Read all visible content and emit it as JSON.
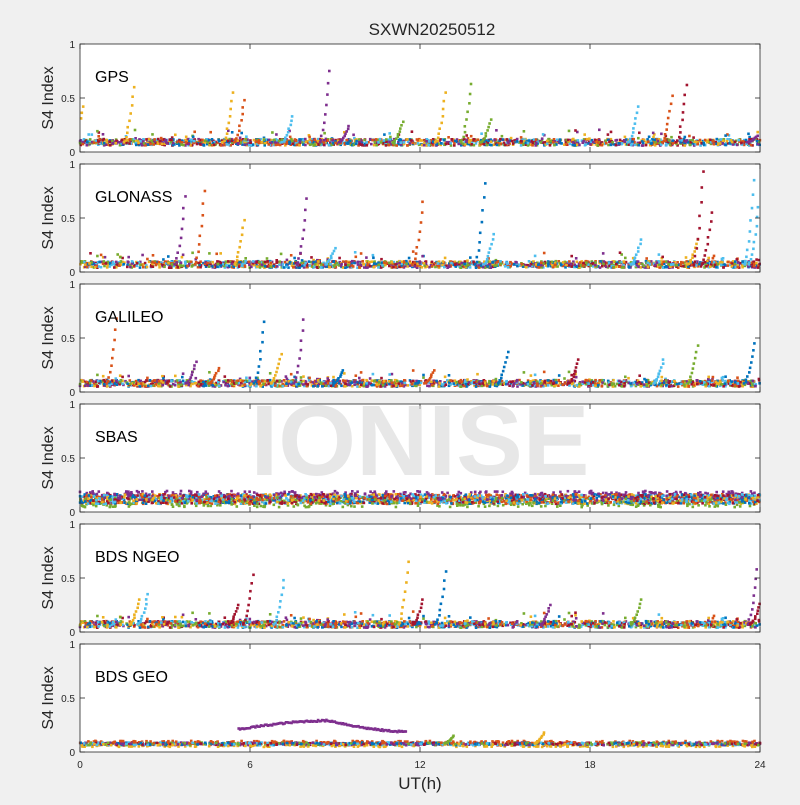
{
  "figure": {
    "title": "SXWN20250512",
    "xlabel": "UT(h)",
    "watermark": "IONISE",
    "xticks": [
      "0",
      "6",
      "12",
      "18",
      "24"
    ],
    "colors": [
      "#0072BD",
      "#D95319",
      "#EDB120",
      "#7E2F8E",
      "#77AC30",
      "#4DBEEE",
      "#A2142F"
    ]
  },
  "chart_data": [
    {
      "type": "scatter",
      "panel_label": "GPS",
      "ylabel": "S4 Index",
      "xlim": [
        0,
        24
      ],
      "ylim": [
        0,
        1
      ],
      "yticks": [
        "0",
        "0.5",
        "1"
      ],
      "baseline": 0.09,
      "spikes": [
        {
          "x": 0.1,
          "y": 0.42,
          "c": 2
        },
        {
          "x": 1.9,
          "y": 0.6,
          "c": 2
        },
        {
          "x": 5.4,
          "y": 0.55,
          "c": 2
        },
        {
          "x": 5.8,
          "y": 0.48,
          "c": 1
        },
        {
          "x": 7.5,
          "y": 0.33,
          "c": 5
        },
        {
          "x": 8.8,
          "y": 0.75,
          "c": 3
        },
        {
          "x": 9.5,
          "y": 0.24,
          "c": 3
        },
        {
          "x": 11.4,
          "y": 0.28,
          "c": 4
        },
        {
          "x": 12.9,
          "y": 0.55,
          "c": 2
        },
        {
          "x": 13.8,
          "y": 0.63,
          "c": 4
        },
        {
          "x": 14.5,
          "y": 0.3,
          "c": 4
        },
        {
          "x": 19.7,
          "y": 0.42,
          "c": 5
        },
        {
          "x": 20.9,
          "y": 0.52,
          "c": 1
        },
        {
          "x": 21.4,
          "y": 0.62,
          "c": 6
        },
        {
          "x": 23.9,
          "y": 0.15,
          "c": 3
        }
      ]
    },
    {
      "type": "scatter",
      "panel_label": "GLONASS",
      "ylabel": "S4 Index",
      "xlim": [
        0,
        24
      ],
      "ylim": [
        0,
        1
      ],
      "yticks": [
        "0",
        "0.5",
        "1"
      ],
      "baseline": 0.07,
      "spikes": [
        {
          "x": 3.7,
          "y": 0.7,
          "c": 3
        },
        {
          "x": 4.4,
          "y": 0.75,
          "c": 1
        },
        {
          "x": 5.8,
          "y": 0.48,
          "c": 2
        },
        {
          "x": 8.0,
          "y": 0.68,
          "c": 3
        },
        {
          "x": 9.0,
          "y": 0.22,
          "c": 5
        },
        {
          "x": 12.1,
          "y": 0.65,
          "c": 1
        },
        {
          "x": 14.3,
          "y": 0.82,
          "c": 0
        },
        {
          "x": 14.6,
          "y": 0.35,
          "c": 5
        },
        {
          "x": 19.8,
          "y": 0.3,
          "c": 5
        },
        {
          "x": 21.8,
          "y": 0.3,
          "c": 2
        },
        {
          "x": 22.0,
          "y": 0.93,
          "c": 6
        },
        {
          "x": 22.3,
          "y": 0.55,
          "c": 6
        },
        {
          "x": 23.8,
          "y": 0.85,
          "c": 5
        },
        {
          "x": 23.95,
          "y": 0.6,
          "c": 5
        }
      ]
    },
    {
      "type": "scatter",
      "panel_label": "GALILEO",
      "ylabel": "S4 Index",
      "xlim": [
        0,
        24
      ],
      "ylim": [
        0,
        1
      ],
      "yticks": [
        "0",
        "0.5",
        "1"
      ],
      "baseline": 0.08,
      "spikes": [
        {
          "x": 1.3,
          "y": 0.68,
          "c": 1
        },
        {
          "x": 4.1,
          "y": 0.28,
          "c": 3
        },
        {
          "x": 4.9,
          "y": 0.22,
          "c": 1
        },
        {
          "x": 6.5,
          "y": 0.65,
          "c": 0
        },
        {
          "x": 7.1,
          "y": 0.35,
          "c": 2
        },
        {
          "x": 7.9,
          "y": 0.67,
          "c": 3
        },
        {
          "x": 9.3,
          "y": 0.2,
          "c": 0
        },
        {
          "x": 12.5,
          "y": 0.2,
          "c": 1
        },
        {
          "x": 15.1,
          "y": 0.37,
          "c": 0
        },
        {
          "x": 17.6,
          "y": 0.3,
          "c": 6
        },
        {
          "x": 20.6,
          "y": 0.3,
          "c": 5
        },
        {
          "x": 21.8,
          "y": 0.43,
          "c": 4
        },
        {
          "x": 23.8,
          "y": 0.45,
          "c": 0
        }
      ]
    },
    {
      "type": "scatter",
      "panel_label": "SBAS",
      "ylabel": "S4 Index",
      "xlim": [
        0,
        24
      ],
      "ylim": [
        0,
        1
      ],
      "yticks": [
        "0",
        "0.5",
        "1"
      ],
      "baseline": 0.12,
      "spikes": []
    },
    {
      "type": "scatter",
      "panel_label": "BDS NGEO",
      "ylabel": "S4 Index",
      "xlim": [
        0,
        24
      ],
      "ylim": [
        0,
        1
      ],
      "yticks": [
        "0",
        "0.5",
        "1"
      ],
      "baseline": 0.07,
      "spikes": [
        {
          "x": 2.1,
          "y": 0.3,
          "c": 2
        },
        {
          "x": 2.4,
          "y": 0.35,
          "c": 5
        },
        {
          "x": 5.6,
          "y": 0.25,
          "c": 6
        },
        {
          "x": 6.1,
          "y": 0.53,
          "c": 6
        },
        {
          "x": 7.2,
          "y": 0.48,
          "c": 5
        },
        {
          "x": 11.6,
          "y": 0.65,
          "c": 2
        },
        {
          "x": 12.1,
          "y": 0.3,
          "c": 6
        },
        {
          "x": 12.9,
          "y": 0.56,
          "c": 0
        },
        {
          "x": 16.6,
          "y": 0.25,
          "c": 3
        },
        {
          "x": 19.8,
          "y": 0.3,
          "c": 4
        },
        {
          "x": 23.9,
          "y": 0.58,
          "c": 3
        },
        {
          "x": 24.0,
          "y": 0.26,
          "c": 6
        }
      ]
    },
    {
      "type": "scatter",
      "panel_label": "BDS GEO",
      "ylabel": "S4 Index",
      "xlim": [
        0,
        24
      ],
      "ylim": [
        0,
        1
      ],
      "yticks": [
        "0",
        "0.5",
        "1"
      ],
      "baseline": 0.08,
      "arc": {
        "x_start": 5.6,
        "x_end": 11.5,
        "y_start": 0.21,
        "y_peak": 0.29,
        "x_peak": 8.8,
        "y_end": 0.19,
        "c": 3
      },
      "spikes": [
        {
          "x": 13.2,
          "y": 0.15,
          "c": 4
        },
        {
          "x": 16.4,
          "y": 0.18,
          "c": 2
        }
      ]
    }
  ]
}
